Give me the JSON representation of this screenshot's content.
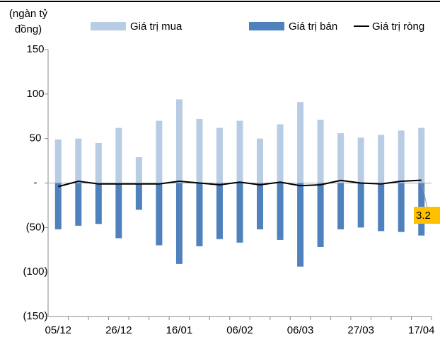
{
  "chart_data": {
    "type": "bar_line",
    "y_label": [
      "(ngàn tỷ",
      "đồng)"
    ],
    "categories": [
      "05/12",
      null,
      null,
      "26/12",
      null,
      null,
      "16/01",
      null,
      null,
      "06/02",
      null,
      null,
      "06/03",
      null,
      null,
      "27/03",
      null,
      null,
      "17/04"
    ],
    "series": [
      {
        "name": "Giá trị mua",
        "color": "#b8cce4",
        "kind": "bar",
        "values": [
          49,
          50,
          45,
          62,
          29,
          70,
          94,
          72,
          62,
          70,
          50,
          66,
          91,
          71,
          56,
          51,
          54,
          59,
          62
        ]
      },
      {
        "name": "Giá trị bán",
        "color": "#4f81bd",
        "kind": "bar",
        "values": [
          -52,
          -48,
          -46,
          -62,
          -30,
          -70,
          -91,
          -71,
          -63,
          -67,
          -52,
          -64,
          -94,
          -72,
          -52,
          -50,
          -54,
          -55,
          -59
        ]
      },
      {
        "name": "Giá trị ròng",
        "color": "#000000",
        "kind": "line",
        "values": [
          -4,
          2,
          -1,
          -1,
          -1,
          -1,
          2,
          0,
          -2,
          1,
          -2,
          1,
          -3,
          -2,
          3,
          0,
          -1,
          2,
          3.2
        ]
      }
    ],
    "ylim": [
      -150,
      150
    ],
    "yticks": [
      {
        "value": -150,
        "label": "(150)"
      },
      {
        "value": -100,
        "label": "(100)"
      },
      {
        "value": -50,
        "label": "(50)"
      },
      {
        "value": 0,
        "label": "-"
      },
      50,
      100,
      150
    ]
  }
}
